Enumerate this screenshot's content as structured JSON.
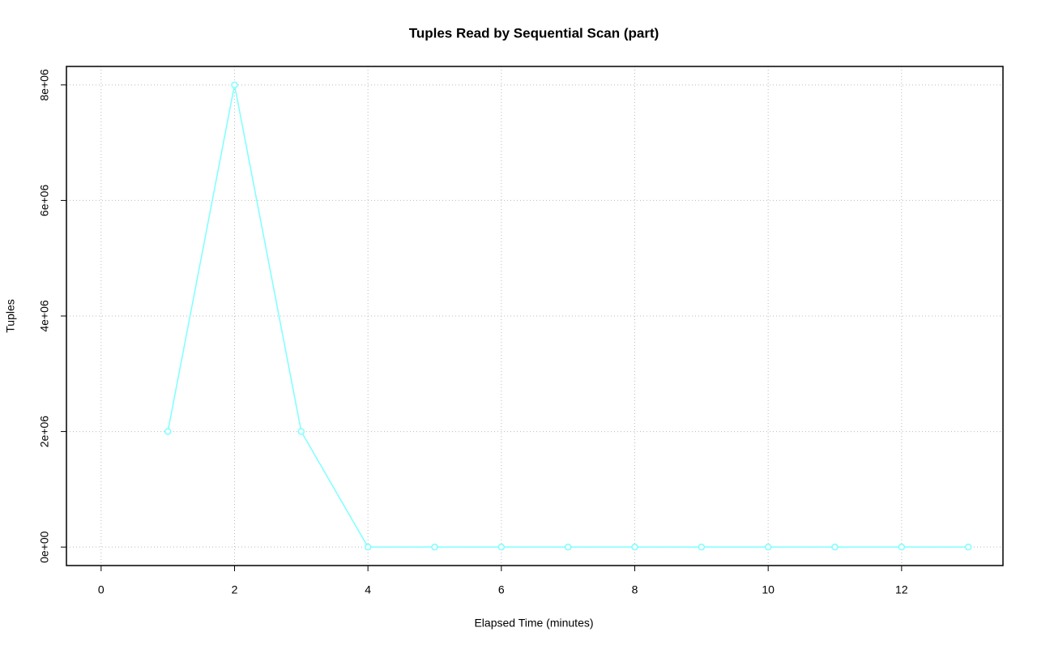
{
  "chart_data": {
    "type": "line",
    "title": "Tuples Read by Sequential Scan (part)",
    "xlabel": "Elapsed Time (minutes)",
    "ylabel": "Tuples",
    "x": [
      1,
      2,
      3,
      4,
      5,
      6,
      7,
      8,
      9,
      10,
      11,
      12,
      13
    ],
    "series": [
      {
        "color": "#7fffff",
        "values": [
          2000000,
          8000000,
          2000000,
          0,
          0,
          0,
          0,
          0,
          0,
          0,
          0,
          0,
          0
        ]
      }
    ],
    "xlim": [
      -0.52,
      13.52
    ],
    "xticks": [
      0,
      2,
      4,
      6,
      8,
      10,
      12
    ],
    "ylim": [
      -320000,
      8320000
    ],
    "yticks": [
      {
        "value": 0,
        "label": "0e+00"
      },
      {
        "value": 2000000,
        "label": "2e+06"
      },
      {
        "value": 4000000,
        "label": "4e+06"
      },
      {
        "value": 6000000,
        "label": "6e+06"
      },
      {
        "value": 8000000,
        "label": "8e+06"
      }
    ],
    "grid": true
  }
}
